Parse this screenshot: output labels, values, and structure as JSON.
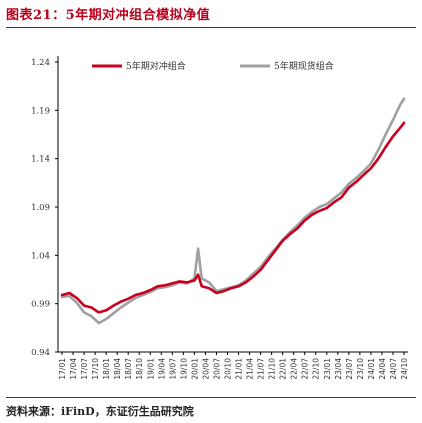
{
  "header": {
    "title": "图表21：5年期对冲组合模拟净值"
  },
  "footer": {
    "source": "资料来源：iFinD，东证衍生品研究院"
  },
  "colors": {
    "accent": "#b8001a",
    "hedge": "#c8001e",
    "spot": "#a0a0a0",
    "axis": "#000000"
  },
  "chart_data": {
    "type": "line",
    "title": "",
    "xlabel": "",
    "ylabel": "",
    "ylim": [
      0.94,
      1.24
    ],
    "yticks": [
      "1.24",
      "1.19",
      "1.14",
      "1.09",
      "1.04",
      "0.99",
      "0.94"
    ],
    "ytick_values": [
      1.24,
      1.19,
      1.14,
      1.09,
      1.04,
      0.99,
      0.94
    ],
    "xticks": [
      "17/01",
      "17/04",
      "17/07",
      "17/10",
      "18/01",
      "18/04",
      "18/07",
      "18/10",
      "19/01",
      "19/04",
      "19/07",
      "19/10",
      "20/01",
      "20/04",
      "20/07",
      "20/10",
      "21/01",
      "21/04",
      "21/07",
      "21/10",
      "22/01",
      "22/04",
      "22/07",
      "22/10",
      "23/01",
      "23/04",
      "23/07",
      "23/10",
      "24/01",
      "24/04",
      "24/07",
      "24/10"
    ],
    "legend": {
      "placement": "top"
    },
    "grid": false,
    "series": [
      {
        "name": "5年期对冲组合",
        "color": "#c8001e",
        "points": [
          [
            "17/01",
            0.999
          ],
          [
            "17/03",
            1.001
          ],
          [
            "17/05",
            0.996
          ],
          [
            "17/07",
            0.988
          ],
          [
            "17/09",
            0.986
          ],
          [
            "17/11",
            0.981
          ],
          [
            "18/01",
            0.983
          ],
          [
            "18/03",
            0.988
          ],
          [
            "18/05",
            0.992
          ],
          [
            "18/07",
            0.995
          ],
          [
            "18/09",
            0.999
          ],
          [
            "18/11",
            1.001
          ],
          [
            "19/01",
            1.004
          ],
          [
            "19/03",
            1.008
          ],
          [
            "19/05",
            1.009
          ],
          [
            "19/07",
            1.011
          ],
          [
            "19/09",
            1.013
          ],
          [
            "19/11",
            1.012
          ],
          [
            "20/01",
            1.014
          ],
          [
            "20/02",
            1.02
          ],
          [
            "20/03",
            1.008
          ],
          [
            "20/05",
            1.006
          ],
          [
            "20/07",
            1.001
          ],
          [
            "20/09",
            1.003
          ],
          [
            "20/11",
            1.006
          ],
          [
            "21/01",
            1.008
          ],
          [
            "21/03",
            1.012
          ],
          [
            "21/05",
            1.018
          ],
          [
            "21/07",
            1.025
          ],
          [
            "21/09",
            1.035
          ],
          [
            "21/11",
            1.045
          ],
          [
            "22/01",
            1.055
          ],
          [
            "22/03",
            1.062
          ],
          [
            "22/05",
            1.068
          ],
          [
            "22/07",
            1.076
          ],
          [
            "22/09",
            1.082
          ],
          [
            "22/11",
            1.086
          ],
          [
            "23/01",
            1.089
          ],
          [
            "23/03",
            1.095
          ],
          [
            "23/05",
            1.1
          ],
          [
            "23/07",
            1.11
          ],
          [
            "23/09",
            1.116
          ],
          [
            "23/11",
            1.123
          ],
          [
            "24/01",
            1.13
          ],
          [
            "24/03",
            1.14
          ],
          [
            "24/05",
            1.152
          ],
          [
            "24/07",
            1.163
          ],
          [
            "24/09",
            1.172
          ],
          [
            "24/10",
            1.177
          ]
        ]
      },
      {
        "name": "5年期现货组合",
        "color": "#a0a0a0",
        "points": [
          [
            "17/01",
            0.997
          ],
          [
            "17/03",
            0.998
          ],
          [
            "17/05",
            0.991
          ],
          [
            "17/07",
            0.981
          ],
          [
            "17/09",
            0.977
          ],
          [
            "17/11",
            0.97
          ],
          [
            "18/01",
            0.974
          ],
          [
            "18/03",
            0.98
          ],
          [
            "18/05",
            0.986
          ],
          [
            "18/07",
            0.991
          ],
          [
            "18/09",
            0.996
          ],
          [
            "18/11",
            0.999
          ],
          [
            "19/01",
            1.002
          ],
          [
            "19/03",
            1.006
          ],
          [
            "19/05",
            1.007
          ],
          [
            "19/07",
            1.009
          ],
          [
            "19/09",
            1.012
          ],
          [
            "19/11",
            1.011
          ],
          [
            "20/01",
            1.016
          ],
          [
            "20/02",
            1.047
          ],
          [
            "20/03",
            1.016
          ],
          [
            "20/05",
            1.012
          ],
          [
            "20/07",
            1.003
          ],
          [
            "20/09",
            1.005
          ],
          [
            "20/11",
            1.007
          ],
          [
            "21/01",
            1.009
          ],
          [
            "21/03",
            1.014
          ],
          [
            "21/05",
            1.021
          ],
          [
            "21/07",
            1.028
          ],
          [
            "21/09",
            1.038
          ],
          [
            "21/11",
            1.047
          ],
          [
            "22/01",
            1.056
          ],
          [
            "22/03",
            1.064
          ],
          [
            "22/05",
            1.071
          ],
          [
            "22/07",
            1.079
          ],
          [
            "22/09",
            1.085
          ],
          [
            "22/11",
            1.09
          ],
          [
            "23/01",
            1.093
          ],
          [
            "23/03",
            1.099
          ],
          [
            "23/05",
            1.105
          ],
          [
            "23/07",
            1.114
          ],
          [
            "23/09",
            1.12
          ],
          [
            "23/11",
            1.127
          ],
          [
            "24/01",
            1.135
          ],
          [
            "24/03",
            1.149
          ],
          [
            "24/05",
            1.165
          ],
          [
            "24/07",
            1.18
          ],
          [
            "24/09",
            1.196
          ],
          [
            "24/10",
            1.202
          ]
        ]
      }
    ]
  }
}
